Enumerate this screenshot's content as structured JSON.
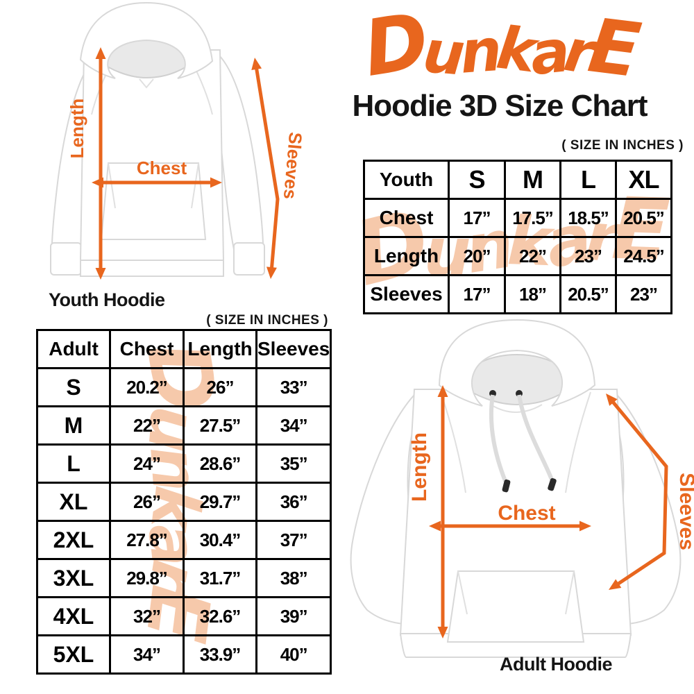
{
  "brand": {
    "name": "DunkarE",
    "logo_color": "#E8661E",
    "watermark_color": "#F6C9AB"
  },
  "title": "Hoodie 3D Size Chart",
  "size_note": "( SIZE IN INCHES )",
  "arrow_color": "#E8661E",
  "youth": {
    "caption": "Youth Hoodie",
    "length_label": "Length",
    "chest_label": "Chest",
    "sleeves_label": "Sleeves",
    "table": {
      "header": [
        "Youth",
        "S",
        "M",
        "L",
        "XL"
      ],
      "rows": [
        {
          "label": "Chest",
          "values": [
            "17”",
            "17.5”",
            "18.5”",
            "20.5”"
          ]
        },
        {
          "label": "Length",
          "values": [
            "20”",
            "22”",
            "23”",
            "24.5”"
          ]
        },
        {
          "label": "Sleeves",
          "values": [
            "17”",
            "18”",
            "20.5”",
            "23”"
          ]
        }
      ]
    }
  },
  "adult": {
    "caption": "Adult Hoodie",
    "length_label": "Length",
    "chest_label": "Chest",
    "sleeves_label": "Sleeves",
    "table": {
      "header": [
        "Adult",
        "Chest",
        "Length",
        "Sleeves"
      ],
      "rows": [
        {
          "label": "S",
          "values": [
            "20.2”",
            "26”",
            "33”"
          ]
        },
        {
          "label": "M",
          "values": [
            "22”",
            "27.5”",
            "34”"
          ]
        },
        {
          "label": "L",
          "values": [
            "24”",
            "28.6”",
            "35”"
          ]
        },
        {
          "label": "XL",
          "values": [
            "26”",
            "29.7”",
            "36”"
          ]
        },
        {
          "label": "2XL",
          "values": [
            "27.8”",
            "30.4”",
            "37”"
          ]
        },
        {
          "label": "3XL",
          "values": [
            "29.8”",
            "31.7”",
            "38”"
          ]
        },
        {
          "label": "4XL",
          "values": [
            "32”",
            "32.6”",
            "39”"
          ]
        },
        {
          "label": "5XL",
          "values": [
            "34”",
            "33.9”",
            "40”"
          ]
        }
      ]
    }
  },
  "chart_data": [
    {
      "type": "table",
      "title": "Youth Hoodie size chart (inches)",
      "columns": [
        "Youth",
        "S",
        "M",
        "L",
        "XL"
      ],
      "rows": [
        [
          "Chest",
          17,
          17.5,
          18.5,
          20.5
        ],
        [
          "Length",
          20,
          22,
          23,
          24.5
        ],
        [
          "Sleeves",
          17,
          18,
          20.5,
          23
        ]
      ]
    },
    {
      "type": "table",
      "title": "Adult Hoodie size chart (inches)",
      "columns": [
        "Adult",
        "Chest",
        "Length",
        "Sleeves"
      ],
      "rows": [
        [
          "S",
          20.2,
          26,
          33
        ],
        [
          "M",
          22,
          27.5,
          34
        ],
        [
          "L",
          24,
          28.6,
          35
        ],
        [
          "XL",
          26,
          29.7,
          36
        ],
        [
          "2XL",
          27.8,
          30.4,
          37
        ],
        [
          "3XL",
          29.8,
          31.7,
          38
        ],
        [
          "4XL",
          32,
          32.6,
          39
        ],
        [
          "5XL",
          34,
          33.9,
          40
        ]
      ]
    }
  ]
}
